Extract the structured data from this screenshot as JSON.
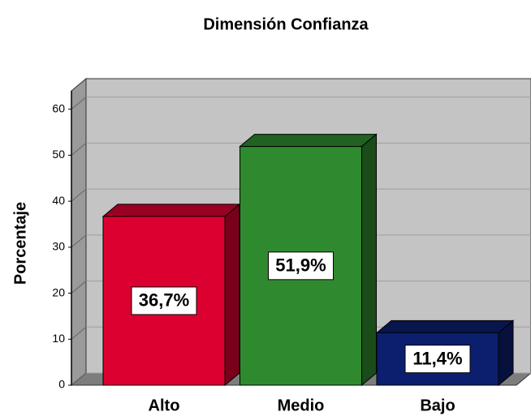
{
  "chart_data": {
    "type": "bar3d",
    "title": "Dimensión Confianza",
    "ylabel": "Porcentaje",
    "categories": [
      "Alto",
      "Medio",
      "Bajo"
    ],
    "values": [
      36.7,
      51.9,
      11.4
    ],
    "value_labels": [
      "36,7%",
      "51,9%",
      "11,4%"
    ],
    "colors": [
      "#dc0030",
      "#2f8a2f",
      "#0c1f6e"
    ],
    "ylim": [
      0,
      64
    ],
    "yticks": [
      0,
      10,
      20,
      30,
      40,
      50,
      60
    ],
    "grid": true
  }
}
